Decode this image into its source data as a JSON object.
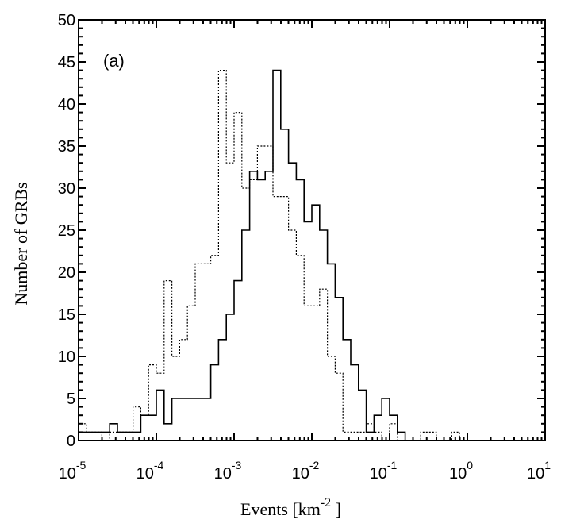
{
  "chart_data": {
    "type": "histogram",
    "panel_label": "(a)",
    "xlabel": "Events [km",
    "xlabel_exponent": "-2",
    "xlabel_suffix": " ]",
    "ylabel": "Number of GRBs",
    "xscale": "log",
    "xlim": [
      1e-05,
      10
    ],
    "ylim": [
      0,
      50
    ],
    "x_ticks": [
      {
        "value": 1e-05,
        "base": "10",
        "exp": "-5"
      },
      {
        "value": 0.0001,
        "base": "10",
        "exp": "-4"
      },
      {
        "value": 0.001,
        "base": "10",
        "exp": "-3"
      },
      {
        "value": 0.01,
        "base": "10",
        "exp": "-2"
      },
      {
        "value": 0.1,
        "base": "10",
        "exp": "-1"
      },
      {
        "value": 1,
        "base": "10",
        "exp": "0"
      },
      {
        "value": 10,
        "base": "10",
        "exp": "1"
      }
    ],
    "y_ticks": [
      "0",
      "5",
      "10",
      "15",
      "20",
      "25",
      "30",
      "35",
      "40",
      "45",
      "50"
    ],
    "log10_bin_edges": [
      -5.0,
      -4.9,
      -4.8,
      -4.7,
      -4.6,
      -4.5,
      -4.4,
      -4.3,
      -4.2,
      -4.1,
      -4.0,
      -3.9,
      -3.8,
      -3.7,
      -3.6,
      -3.5,
      -3.4,
      -3.3,
      -3.2,
      -3.1,
      -3.0,
      -2.9,
      -2.8,
      -2.7,
      -2.6,
      -2.5,
      -2.4,
      -2.3,
      -2.2,
      -2.1,
      -2.0,
      -1.9,
      -1.8,
      -1.7,
      -1.6,
      -1.5,
      -1.4,
      -1.3,
      -1.2,
      -1.1,
      -1.0,
      -0.9,
      -0.8,
      -0.7,
      -0.6,
      -0.5,
      -0.4,
      -0.3,
      -0.2,
      -0.1,
      0.0
    ],
    "series": [
      {
        "style": "solid",
        "values": [
          1,
          1,
          1,
          1,
          2,
          1,
          1,
          1,
          3,
          3,
          6,
          2,
          5,
          5,
          5,
          5,
          5,
          9,
          12,
          15,
          19,
          25,
          32,
          31,
          32,
          44,
          37,
          33,
          31,
          26,
          28,
          25,
          21,
          17,
          12,
          9,
          6,
          1,
          3,
          5,
          3,
          1,
          0,
          0,
          0,
          0,
          0,
          0,
          0,
          0
        ]
      },
      {
        "style": "dotted",
        "values": [
          2,
          1,
          1,
          0,
          1,
          1,
          1,
          4,
          3,
          9,
          8,
          19,
          10,
          12,
          16,
          21,
          21,
          22,
          44,
          33,
          39,
          30,
          31,
          35,
          35,
          29,
          29,
          25,
          22,
          16,
          16,
          18,
          10,
          8,
          1,
          1,
          1,
          2,
          1,
          0,
          2,
          0,
          0,
          0,
          1,
          1,
          0,
          0,
          1,
          0
        ]
      }
    ]
  }
}
